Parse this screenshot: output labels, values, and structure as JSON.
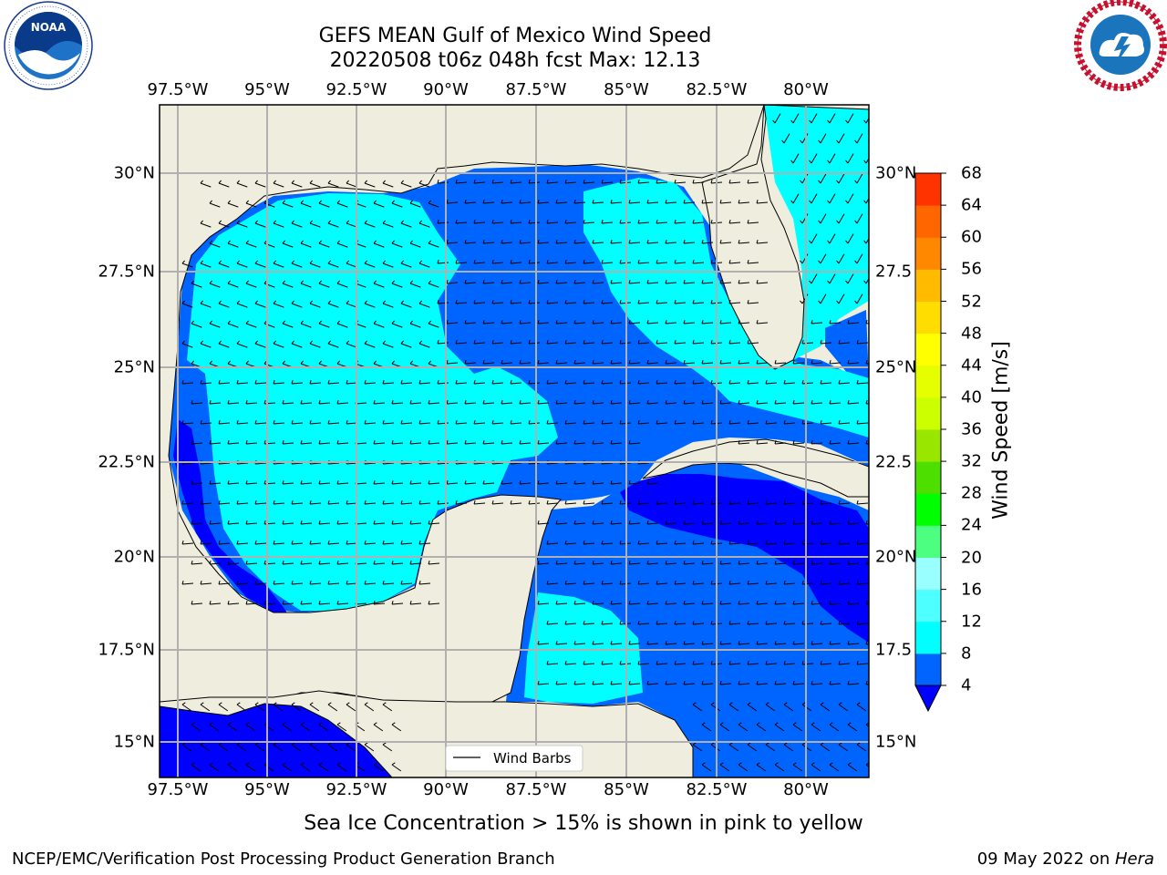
{
  "header": {
    "title_line1": "GEFS MEAN Gulf of Mexico Wind Speed",
    "title_line2": "20220508 t06z 048h fcst   Max: 12.13"
  },
  "logos": {
    "left": {
      "name": "NOAA",
      "ring_text": "NATIONAL OCEANIC AND ATMOSPHERIC ADMINISTRATION · U.S. DEPARTMENT OF COMMERCE"
    },
    "right": {
      "name": "National Weather Service",
      "ring_text": "NATIONAL WEATHER SERVICE"
    }
  },
  "map": {
    "lon_ticks_top": [
      "97.5°W",
      "95°W",
      "92.5°W",
      "90°W",
      "87.5°W",
      "85°W",
      "82.5°W",
      "80°W"
    ],
    "lon_ticks_bottom": [
      "97.5°W",
      "95°W",
      "92.5°W",
      "90°W",
      "87.5°W",
      "85°W",
      "82.5°W",
      "80°W"
    ],
    "lat_ticks_left": [
      "30°N",
      "27.5°N",
      "25°N",
      "22.5°N",
      "20°N",
      "17.5°N",
      "15°N"
    ],
    "lat_ticks_right": [
      "30°N",
      "27.5",
      "25°N",
      "22.5",
      "20°N",
      "17.5",
      "15°N"
    ],
    "legend_label": "Wind Barbs",
    "land_color": "#efedde",
    "grid_color": "#b0b0b0"
  },
  "colorbar": {
    "title": "Wind Speed [m/s]",
    "levels": [
      "4",
      "8",
      "12",
      "16",
      "20",
      "24",
      "28",
      "32",
      "36",
      "40",
      "44",
      "48",
      "52",
      "56",
      "60",
      "64",
      "68"
    ],
    "colors": [
      "#0064ff",
      "#00ffff",
      "#4dffff",
      "#99ffff",
      "#4dff80",
      "#00ff00",
      "#4ddf00",
      "#99e600",
      "#ccff00",
      "#e6ff00",
      "#ffff00",
      "#ffdd00",
      "#ffbb00",
      "#ff8800",
      "#ff6600",
      "#ff3300"
    ],
    "extend_color": "#0000ff"
  },
  "footer": {
    "subtitle": "Sea Ice Concentration > 15% is shown in pink to yellow",
    "credit": "NCEP/EMC/Verification Post Processing Product Generation Branch",
    "date_text": "09 May 2022 on ",
    "date_host": "Hera"
  }
}
